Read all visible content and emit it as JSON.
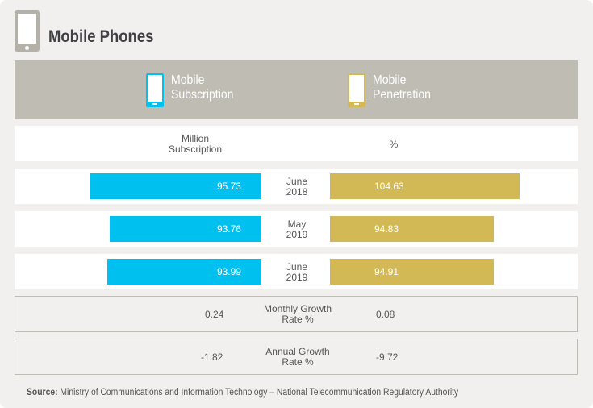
{
  "title": "Mobile Phones",
  "legend": {
    "subscription": [
      "Mobile",
      "Subscription"
    ],
    "penetration": [
      "Mobile",
      "Penetration"
    ]
  },
  "units": {
    "subscription": [
      "Million",
      "Subscription"
    ],
    "penetration": "%"
  },
  "colors": {
    "subscription": "#00c0ef",
    "penetration": "#d3b955"
  },
  "chart_data": {
    "type": "bar",
    "categories": [
      [
        "June",
        "2018"
      ],
      [
        "May",
        "2019"
      ],
      [
        "June",
        "2019"
      ]
    ],
    "series": [
      {
        "name": "Mobile Subscription",
        "unit": "Million Subscription",
        "values": [
          95.73,
          93.76,
          93.99
        ]
      },
      {
        "name": "Mobile Penetration",
        "unit": "%",
        "values": [
          104.63,
          94.83,
          94.91
        ]
      }
    ]
  },
  "growth": [
    {
      "label": [
        "Monthly Growth",
        "Rate %"
      ],
      "subscription": "0.24",
      "penetration": "0.08"
    },
    {
      "label": [
        "Annual Growth",
        "Rate %"
      ],
      "subscription": "-1.82",
      "penetration": "-9.72"
    }
  ],
  "source": {
    "label": "Source:",
    "text": " Ministry of Communications and Information Technology – National Telecommunication Regulatory Authority"
  }
}
